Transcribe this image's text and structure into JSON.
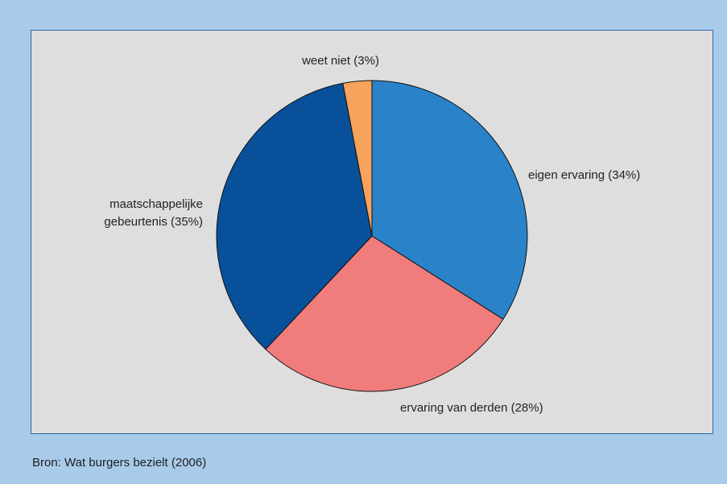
{
  "header": {
    "cut_text": ""
  },
  "colors": {
    "page_background": "#a9cbea",
    "panel_background": "#dedede",
    "panel_border": "#2d67a7"
  },
  "chart_data": {
    "type": "pie",
    "title": "",
    "slices": [
      {
        "label": "eigen ervaring (34%)",
        "value": 34,
        "color": "#2a83c9"
      },
      {
        "label": "ervaring van derden (28%)",
        "value": 28,
        "color": "#f07d7c"
      },
      {
        "label_lines": [
          "maatschappelijke",
          "gebeurtenis (35%)"
        ],
        "value": 35,
        "color": "#08519a"
      },
      {
        "label": "weet niet (3%)",
        "value": 3,
        "color": "#f7a25d"
      }
    ],
    "start_angle_deg": 0,
    "direction": "clockwise"
  },
  "footer": {
    "source": "Bron: Wat burgers bezielt (2006)"
  }
}
